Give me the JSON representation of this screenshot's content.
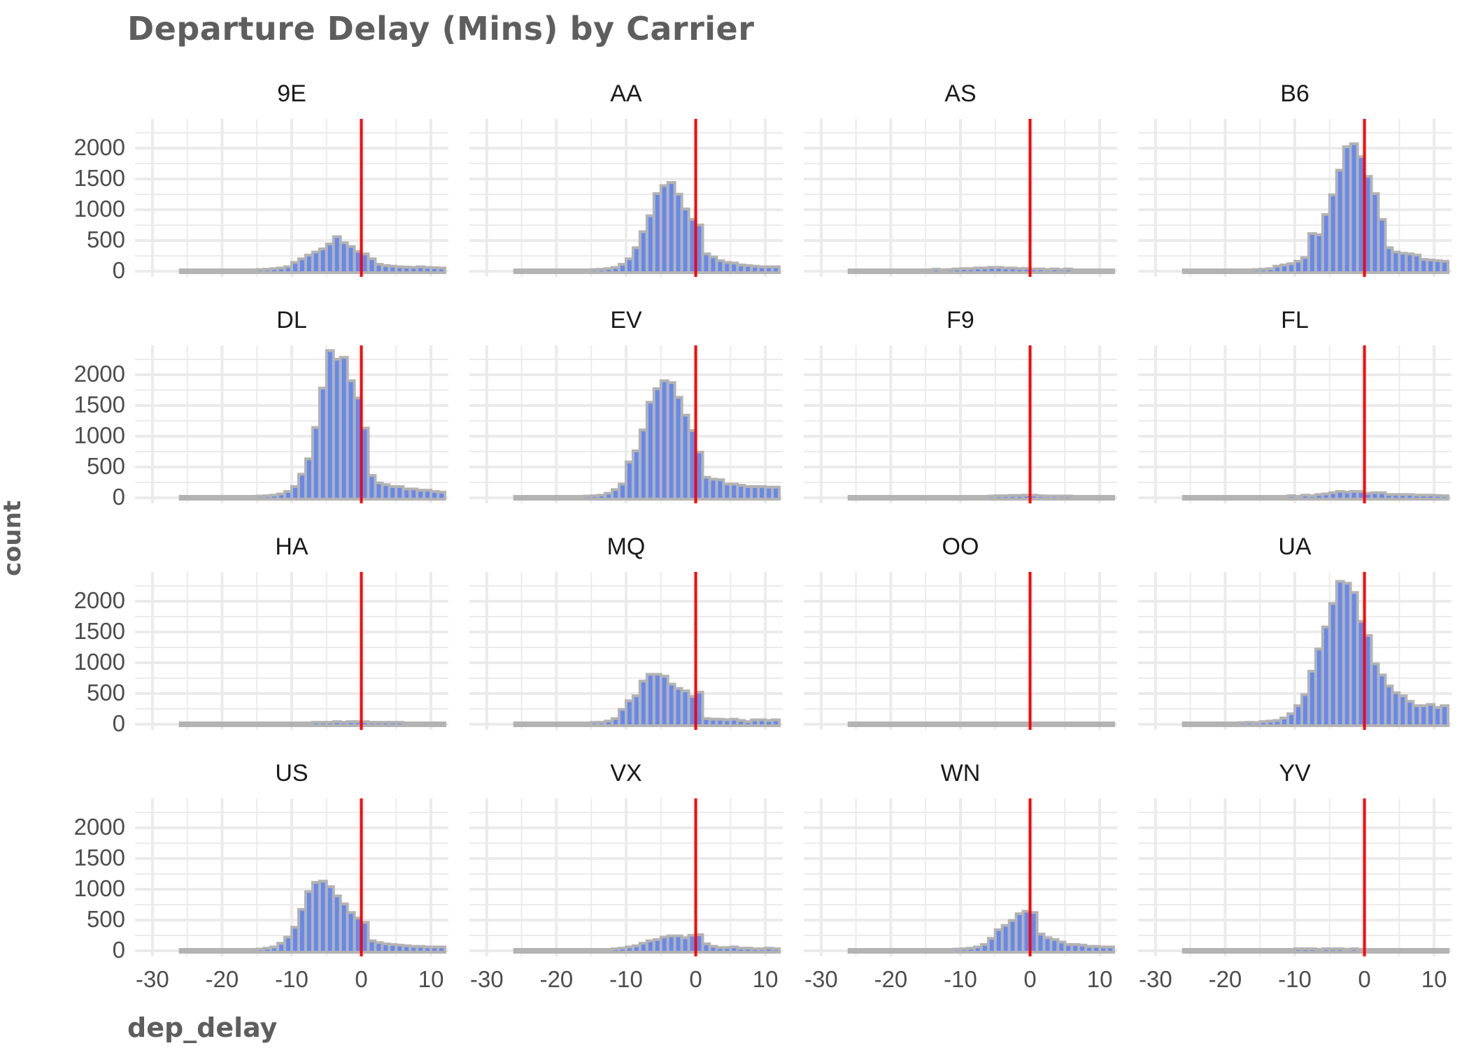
{
  "chart_data": {
    "type": "bar",
    "subtype": "faceted histogram",
    "title": "Departure Delay (Mins) by Carrier",
    "xlabel": "dep_delay",
    "ylabel": "count",
    "xlim": [
      -32.5,
      12.5
    ],
    "ylim": [
      0,
      2450
    ],
    "x_ticks": [
      -30,
      -20,
      -10,
      0,
      10
    ],
    "y_ticks": [
      0,
      500,
      1000,
      1500,
      2000
    ],
    "bin_width": 1,
    "bin_starts": [
      -26,
      -25,
      -24,
      -23,
      -22,
      -21,
      -20,
      -19,
      -18,
      -17,
      -16,
      -15,
      -14,
      -13,
      -12,
      -11,
      -10,
      -9,
      -8,
      -7,
      -6,
      -5,
      -4,
      -3,
      -2,
      -1,
      0,
      1,
      2,
      3,
      4,
      5,
      6,
      7,
      8,
      9,
      10,
      11
    ],
    "reference_line": {
      "x": 0,
      "color": "#FF0000"
    },
    "fill_color": "#6688EE",
    "outline_color": "#B3B3B3",
    "grid": true,
    "facets_layout": {
      "rows": 4,
      "cols": 4
    },
    "series": [
      {
        "name": "9E",
        "values": [
          0,
          0,
          0,
          0,
          0,
          0,
          0,
          0,
          0,
          0,
          0,
          5,
          10,
          20,
          30,
          50,
          120,
          180,
          240,
          290,
          340,
          420,
          540,
          440,
          380,
          300,
          260,
          180,
          90,
          70,
          60,
          50,
          45,
          40,
          50,
          40,
          35,
          30
        ]
      },
      {
        "name": "AA",
        "values": [
          0,
          0,
          0,
          0,
          0,
          0,
          0,
          0,
          0,
          0,
          0,
          5,
          10,
          20,
          40,
          90,
          180,
          360,
          620,
          880,
          1240,
          1370,
          1420,
          1230,
          990,
          820,
          730,
          260,
          210,
          150,
          120,
          110,
          80,
          70,
          60,
          50,
          50,
          50
        ]
      },
      {
        "name": "AS",
        "values": [
          0,
          0,
          0,
          0,
          0,
          0,
          0,
          0,
          0,
          0,
          0,
          0,
          10,
          0,
          5,
          15,
          20,
          20,
          30,
          30,
          40,
          40,
          30,
          30,
          20,
          25,
          15,
          15,
          5,
          15,
          5,
          15,
          0,
          0,
          0,
          0,
          0,
          0
        ]
      },
      {
        "name": "B6",
        "values": [
          0,
          0,
          0,
          0,
          0,
          0,
          0,
          0,
          0,
          0,
          5,
          10,
          20,
          60,
          80,
          100,
          140,
          200,
          590,
          570,
          900,
          1220,
          1620,
          2000,
          2050,
          1840,
          1520,
          1240,
          820,
          360,
          290,
          270,
          260,
          240,
          170,
          160,
          150,
          140
        ]
      },
      {
        "name": "DL",
        "values": [
          0,
          0,
          0,
          0,
          0,
          0,
          0,
          0,
          0,
          0,
          0,
          5,
          10,
          20,
          40,
          80,
          160,
          360,
          610,
          1120,
          1760,
          2370,
          2230,
          2260,
          1880,
          1600,
          1110,
          340,
          220,
          190,
          160,
          160,
          120,
          120,
          100,
          100,
          80,
          70
        ]
      },
      {
        "name": "EV",
        "values": [
          0,
          0,
          0,
          0,
          0,
          0,
          0,
          0,
          0,
          0,
          5,
          10,
          20,
          50,
          110,
          200,
          560,
          740,
          1080,
          1530,
          1750,
          1880,
          1850,
          1610,
          1320,
          1070,
          720,
          310,
          280,
          270,
          200,
          200,
          180,
          160,
          160,
          160,
          150,
          150
        ]
      },
      {
        "name": "F9",
        "values": [
          0,
          0,
          0,
          0,
          0,
          0,
          0,
          0,
          0,
          0,
          0,
          0,
          0,
          0,
          0,
          0,
          0,
          0,
          0,
          0,
          5,
          10,
          10,
          15,
          15,
          20,
          20,
          10,
          5,
          5,
          5,
          5,
          0,
          0,
          0,
          0,
          0,
          0
        ]
      },
      {
        "name": "FL",
        "values": [
          0,
          0,
          0,
          0,
          0,
          0,
          0,
          0,
          0,
          0,
          0,
          0,
          0,
          0,
          0,
          10,
          0,
          20,
          10,
          30,
          40,
          60,
          80,
          70,
          80,
          80,
          50,
          60,
          60,
          30,
          30,
          30,
          30,
          20,
          20,
          20,
          15,
          10
        ]
      },
      {
        "name": "HA",
        "values": [
          0,
          0,
          0,
          0,
          0,
          0,
          0,
          0,
          0,
          0,
          0,
          0,
          0,
          0,
          0,
          0,
          0,
          0,
          0,
          10,
          10,
          10,
          20,
          10,
          20,
          20,
          20,
          10,
          10,
          10,
          10,
          10,
          0,
          0,
          0,
          0,
          0,
          0
        ]
      },
      {
        "name": "MQ",
        "values": [
          0,
          0,
          0,
          0,
          0,
          0,
          0,
          0,
          0,
          0,
          0,
          10,
          10,
          30,
          70,
          220,
          360,
          440,
          680,
          790,
          790,
          760,
          630,
          560,
          520,
          430,
          500,
          70,
          60,
          60,
          50,
          60,
          40,
          20,
          50,
          50,
          40,
          50
        ]
      },
      {
        "name": "OO",
        "values": [
          0,
          0,
          0,
          0,
          0,
          0,
          0,
          0,
          0,
          0,
          0,
          0,
          0,
          0,
          0,
          0,
          0,
          0,
          0,
          0,
          0,
          0,
          0,
          0,
          0,
          0,
          0,
          0,
          0,
          0,
          0,
          0,
          0,
          0,
          0,
          0,
          0,
          0
        ]
      },
      {
        "name": "UA",
        "values": [
          0,
          0,
          0,
          0,
          0,
          0,
          0,
          0,
          5,
          10,
          5,
          20,
          30,
          40,
          80,
          150,
          280,
          460,
          840,
          1200,
          1560,
          1940,
          2300,
          2270,
          2120,
          1650,
          1420,
          960,
          780,
          600,
          490,
          440,
          350,
          280,
          280,
          300,
          250,
          280
        ]
      },
      {
        "name": "US",
        "values": [
          0,
          0,
          0,
          0,
          0,
          0,
          0,
          0,
          0,
          0,
          0,
          5,
          20,
          40,
          100,
          200,
          360,
          650,
          940,
          1090,
          1110,
          1020,
          870,
          740,
          600,
          510,
          440,
          140,
          110,
          90,
          80,
          70,
          60,
          50,
          50,
          40,
          40,
          40
        ]
      },
      {
        "name": "VX",
        "values": [
          0,
          0,
          0,
          0,
          0,
          0,
          0,
          0,
          0,
          0,
          0,
          0,
          0,
          0,
          10,
          20,
          40,
          60,
          100,
          140,
          160,
          200,
          220,
          220,
          190,
          230,
          240,
          90,
          50,
          30,
          30,
          40,
          20,
          20,
          10,
          10,
          20,
          10
        ]
      },
      {
        "name": "WN",
        "values": [
          0,
          0,
          0,
          0,
          0,
          0,
          0,
          0,
          0,
          0,
          0,
          0,
          0,
          0,
          0,
          5,
          10,
          20,
          40,
          80,
          180,
          320,
          390,
          470,
          580,
          620,
          600,
          250,
          190,
          160,
          120,
          80,
          80,
          70,
          50,
          50,
          40,
          40
        ]
      },
      {
        "name": "YV",
        "values": [
          0,
          0,
          0,
          0,
          0,
          0,
          0,
          0,
          0,
          0,
          0,
          0,
          0,
          0,
          0,
          0,
          10,
          10,
          10,
          0,
          10,
          10,
          10,
          0,
          10,
          0,
          0,
          0,
          0,
          0,
          0,
          0,
          0,
          0,
          0,
          0,
          0,
          0
        ]
      }
    ]
  },
  "header": {
    "title": "Departure Delay (Mins) by Carrier"
  },
  "axes": {
    "xlabel": "dep_delay",
    "ylabel": "count"
  }
}
